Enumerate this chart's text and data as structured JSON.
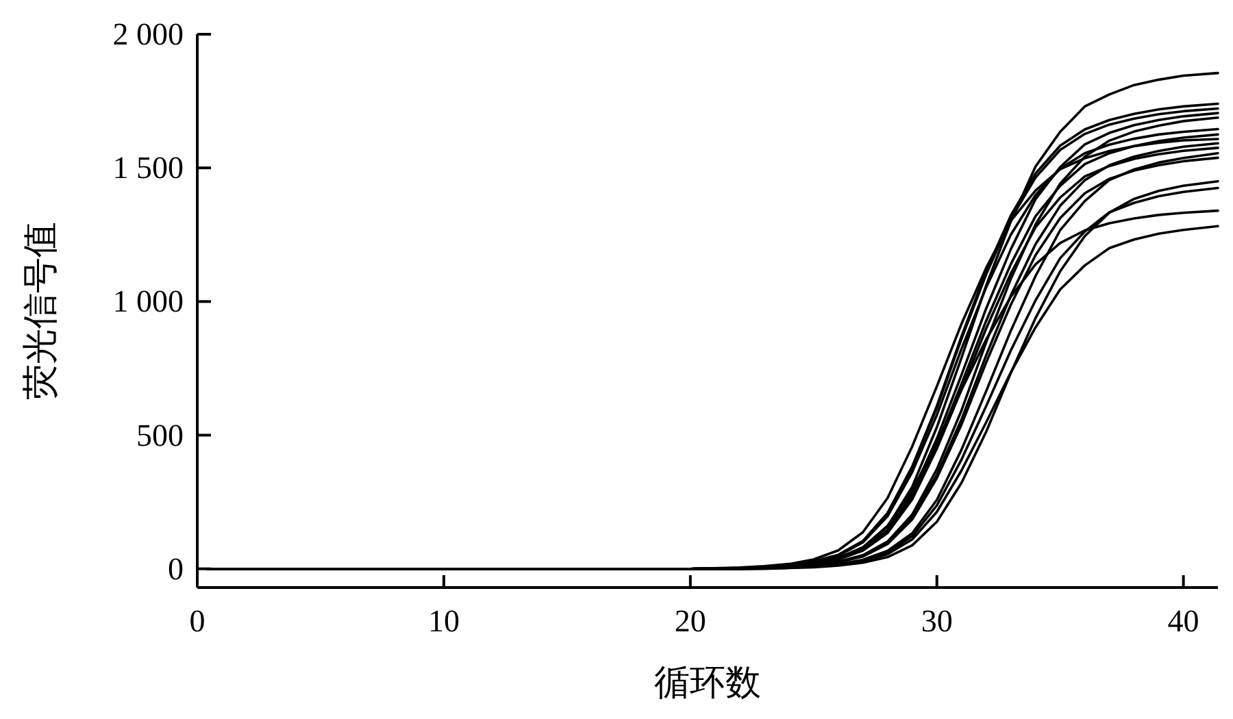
{
  "chart_data": {
    "type": "line",
    "xlabel": "循环数",
    "ylabel": "荧光信号值",
    "x": [
      0.4,
      20,
      22,
      23,
      24,
      25,
      26,
      27,
      28,
      29,
      30,
      31,
      32,
      33,
      34,
      35,
      36,
      37,
      38,
      39,
      40,
      41.4
    ],
    "xlim": [
      0,
      41.4
    ],
    "xticks": [
      0,
      10,
      20,
      30,
      40
    ],
    "ylim": [
      -70,
      2000
    ],
    "yticks": [
      0,
      500,
      {
        "value": 1000,
        "label": "1 000"
      },
      {
        "value": 1500,
        "label": "1 500"
      },
      {
        "value": 2000,
        "label": "2 000"
      }
    ],
    "series": [
      {
        "color": "#000000",
        "values": [
          0,
          0,
          2,
          6,
          11,
          20,
          41,
          80,
          158,
          307,
          530,
          790,
          1060,
          1300,
          1505,
          1635,
          1730,
          1775,
          1810,
          1830,
          1845,
          1855
        ]
      },
      {
        "color": "#000000",
        "values": [
          0,
          0,
          3,
          7,
          14,
          28,
          52,
          104,
          209,
          383,
          609,
          870,
          1114,
          1322,
          1479,
          1583,
          1644,
          1679,
          1702,
          1719,
          1730,
          1740
        ]
      },
      {
        "color": "#000000",
        "values": [
          0,
          0,
          3,
          7,
          14,
          28,
          52,
          103,
          207,
          379,
          603,
          861,
          1102,
          1309,
          1464,
          1567,
          1627,
          1662,
          1684,
          1701,
          1712,
          1722
        ]
      },
      {
        "color": "#000000",
        "values": [
          0,
          0,
          2,
          5,
          10,
          19,
          38,
          73,
          145,
          282,
          487,
          726,
          974,
          1196,
          1383,
          1503,
          1588,
          1631,
          1660,
          1679,
          1693,
          1705
        ]
      },
      {
        "color": "#000000",
        "values": [
          0,
          0,
          0,
          3,
          7,
          14,
          27,
          51,
          102,
          203,
          373,
          593,
          848,
          1085,
          1288,
          1441,
          1542,
          1602,
          1636,
          1658,
          1675,
          1688
        ]
      },
      {
        "color": "#000000",
        "values": [
          0,
          0,
          3,
          7,
          13,
          26,
          49,
          99,
          197,
          362,
          576,
          823,
          1053,
          1250,
          1398,
          1497,
          1555,
          1587,
          1609,
          1625,
          1635,
          1645
        ]
      },
      {
        "color": "#000000",
        "values": [
          0,
          0,
          2,
          5,
          10,
          18,
          36,
          70,
          138,
          269,
          464,
          692,
          928,
          1140,
          1319,
          1433,
          1514,
          1555,
          1582,
          1600,
          1613,
          1625
        ]
      },
      {
        "color": "#000000",
        "values": [
          0,
          0,
          5,
          10,
          18,
          35,
          69,
          137,
          265,
          458,
          683,
          917,
          1126,
          1302,
          1415,
          1495,
          1536,
          1563,
          1581,
          1594,
          1603,
          1608
        ]
      },
      {
        "color": "#000000",
        "values": [
          0,
          0,
          0,
          3,
          6,
          13,
          26,
          48,
          96,
          192,
          352,
          559,
          799,
          1023,
          1214,
          1358,
          1454,
          1510,
          1542,
          1563,
          1579,
          1592
        ]
      },
      {
        "color": "#000000",
        "values": [
          0,
          0,
          2,
          5,
          9,
          17,
          35,
          68,
          134,
          260,
          450,
          671,
          899,
          1105,
          1278,
          1389,
          1468,
          1507,
          1534,
          1551,
          1564,
          1575
        ]
      },
      {
        "color": "#000000",
        "values": [
          0,
          0,
          0,
          2,
          5,
          9,
          17,
          34,
          67,
          133,
          258,
          446,
          665,
          891,
          1095,
          1267,
          1376,
          1455,
          1494,
          1520,
          1537,
          1555
        ]
      },
      {
        "color": "#000000",
        "values": [
          0,
          0,
          0,
          3,
          6,
          12,
          25,
          46,
          93,
          185,
          340,
          540,
          772,
          988,
          1173,
          1312,
          1405,
          1459,
          1490,
          1510,
          1525,
          1538
        ]
      },
      {
        "color": "#000000",
        "values": [
          0,
          0,
          0,
          0,
          3,
          6,
          12,
          23,
          44,
          88,
          176,
          322,
          513,
          733,
          938,
          1113,
          1245,
          1333,
          1384,
          1414,
          1433,
          1450
        ]
      },
      {
        "color": "#000000",
        "values": [
          0,
          0,
          0,
          1,
          4,
          9,
          16,
          32,
          62,
          122,
          237,
          409,
          609,
          817,
          1004,
          1162,
          1262,
          1334,
          1369,
          1394,
          1410,
          1425
        ]
      },
      {
        "color": "#000000",
        "values": [
          0,
          0,
          3,
          5,
          11,
          21,
          40,
          80,
          161,
          295,
          469,
          670,
          858,
          1018,
          1139,
          1219,
          1266,
          1293,
          1311,
          1324,
          1332,
          1340
        ]
      },
      {
        "color": "#000000",
        "values": [
          0,
          0,
          0,
          1,
          4,
          8,
          14,
          28,
          55,
          110,
          213,
          368,
          548,
          735,
          903,
          1045,
          1135,
          1200,
          1232,
          1254,
          1268,
          1282
        ]
      }
    ]
  }
}
